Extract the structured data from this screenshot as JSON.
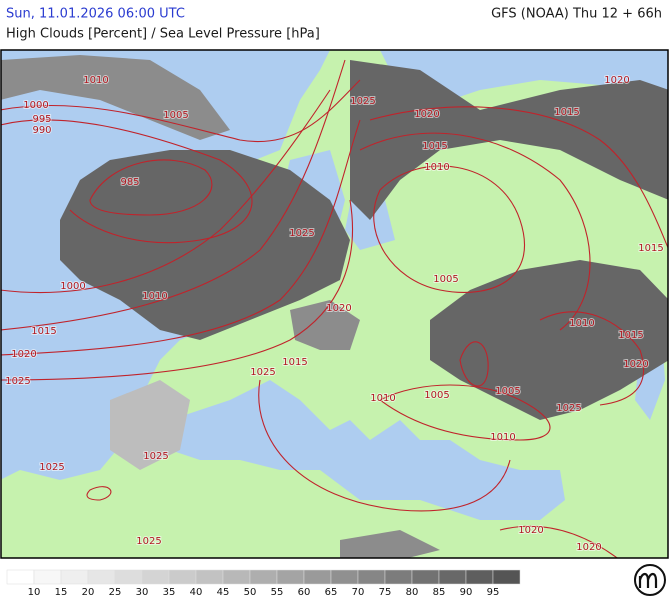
{
  "header": {
    "left": "Sun, 11.01.2026 06:00 UTC",
    "right": "GFS (NOAA) Thu 12 + 66h",
    "subtitle": "High Clouds [Percent] / Sea Level Pressure [hPa]"
  },
  "isobar_labels": [
    1010,
    1000,
    995,
    990,
    1005,
    985,
    1025,
    1020,
    1015,
    1010,
    1020,
    1015,
    1015,
    1025,
    1005,
    1000,
    1010,
    1020,
    1015,
    1020,
    1010,
    1015,
    1020,
    1025,
    1025,
    1015,
    1010,
    1005,
    1005,
    1025,
    1010,
    1025,
    1025,
    1025,
    1020,
    1020
  ],
  "legend": {
    "labels": [
      10,
      15,
      20,
      25,
      30,
      35,
      40,
      45,
      50,
      55,
      60,
      65,
      70,
      75,
      80,
      85,
      90,
      95
    ],
    "colors": [
      "#ffffff",
      "#f7f7f7",
      "#efefef",
      "#e6e6e6",
      "#dddddd",
      "#d4d4d4",
      "#cbcbcb",
      "#c2c2c2",
      "#b8b8b8",
      "#aeaeae",
      "#a4a4a4",
      "#9a9a9a",
      "#909090",
      "#868686",
      "#7c7c7c",
      "#727272",
      "#686868",
      "#5e5e5e",
      "#555555"
    ]
  }
}
